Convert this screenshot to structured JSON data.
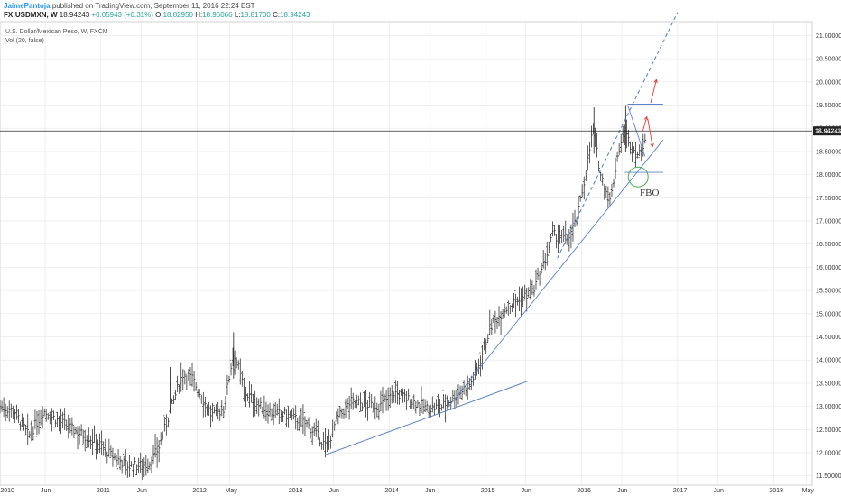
{
  "header": {
    "author": "JaimePantoja",
    "published": "published on TradingView.com, September 11, 2016 22:24 EST"
  },
  "quote": {
    "symbol": "FX:USDMXN, W",
    "last": "18.94243",
    "change": "+0.05943 (+0.31%)",
    "o_label": "O:",
    "o": "18.82950",
    "h_label": "H:",
    "h": "18.96066",
    "l_label": "L:",
    "l": "18.81700",
    "c_label": "C:",
    "c": "18.94243"
  },
  "colors": {
    "bar": "#333333",
    "trendline": "#5b86c8",
    "price_line": "#000000",
    "arrow": "#e53935",
    "circle": "#4caf50",
    "grid": "#e6e6e6",
    "price_badge": "#222222"
  },
  "chart_data": {
    "type": "ohlc",
    "title": "U.S. Dollar/Mexican Peso, W, FXCM",
    "indicator_label": "Vol (20, false)",
    "annotation": "FBO",
    "last_price_label": "18.94243",
    "last_price": 18.94243,
    "ylim": [
      11.3,
      21.3
    ],
    "y_ticks": [
      "11.50000",
      "12.00000",
      "12.50000",
      "13.00000",
      "13.50000",
      "14.00000",
      "14.50000",
      "15.00000",
      "15.50000",
      "16.00000",
      "16.50000",
      "17.00000",
      "17.50000",
      "18.00000",
      "18.50000",
      "19.00000",
      "19.50000",
      "20.00000",
      "20.50000",
      "21.00000"
    ],
    "x_ticks": [
      "2010",
      "Jun",
      "2011",
      "Jun",
      "2012",
      "May",
      "2013",
      "Jun",
      "2014",
      "Jun",
      "2015",
      "Jun",
      "2016",
      "Jun",
      "2017",
      "Jun",
      "2018",
      "May"
    ],
    "x_tick_years": [
      2010.0,
      2010.42,
      2011.0,
      2011.42,
      2012.0,
      2012.34,
      2013.0,
      2013.42,
      2014.0,
      2014.42,
      2015.0,
      2015.42,
      2016.0,
      2016.42,
      2017.0,
      2017.42,
      2018.0,
      2018.34
    ],
    "xlim": [
      2009.95,
      2018.4
    ],
    "series": [
      {
        "name": "",
        "anchors": [
          [
            2009.95,
            13.0
          ],
          [
            2010.1,
            12.9
          ],
          [
            2010.25,
            12.35
          ],
          [
            2010.4,
            12.9
          ],
          [
            2010.55,
            12.7
          ],
          [
            2010.75,
            12.45
          ],
          [
            2010.95,
            12.25
          ],
          [
            2011.1,
            11.95
          ],
          [
            2011.3,
            11.7
          ],
          [
            2011.5,
            11.75
          ],
          [
            2011.6,
            12.1
          ],
          [
            2011.72,
            12.9
          ],
          [
            2011.85,
            13.7
          ],
          [
            2011.95,
            13.6
          ],
          [
            2012.05,
            13.2
          ],
          [
            2012.15,
            12.8
          ],
          [
            2012.28,
            12.95
          ],
          [
            2012.38,
            14.2
          ],
          [
            2012.5,
            13.3
          ],
          [
            2012.65,
            13.0
          ],
          [
            2012.8,
            12.85
          ],
          [
            2012.95,
            12.8
          ],
          [
            2013.15,
            12.6
          ],
          [
            2013.3,
            12.25
          ],
          [
            2013.35,
            12.1
          ],
          [
            2013.45,
            12.7
          ],
          [
            2013.6,
            13.1
          ],
          [
            2013.75,
            13.05
          ],
          [
            2013.9,
            13.0
          ],
          [
            2014.05,
            13.3
          ],
          [
            2014.2,
            13.15
          ],
          [
            2014.4,
            12.95
          ],
          [
            2014.55,
            13.0
          ],
          [
            2014.7,
            13.25
          ],
          [
            2014.85,
            13.5
          ],
          [
            2014.95,
            14.0
          ],
          [
            2015.05,
            14.7
          ],
          [
            2015.2,
            15.1
          ],
          [
            2015.35,
            15.3
          ],
          [
            2015.5,
            15.5
          ],
          [
            2015.6,
            16.0
          ],
          [
            2015.7,
            16.7
          ],
          [
            2015.85,
            16.6
          ],
          [
            2015.95,
            17.0
          ],
          [
            2016.05,
            18.1
          ],
          [
            2016.12,
            19.0
          ],
          [
            2016.2,
            18.0
          ],
          [
            2016.3,
            17.4
          ],
          [
            2016.38,
            18.5
          ],
          [
            2016.45,
            18.9
          ],
          [
            2016.52,
            18.6
          ],
          [
            2016.6,
            18.4
          ],
          [
            2016.68,
            18.9
          ]
        ],
        "highlights": [
          [
            2011.72,
            13.85
          ],
          [
            2012.38,
            14.6
          ],
          [
            2016.13,
            19.45
          ],
          [
            2016.46,
            19.5
          ]
        ]
      }
    ]
  }
}
